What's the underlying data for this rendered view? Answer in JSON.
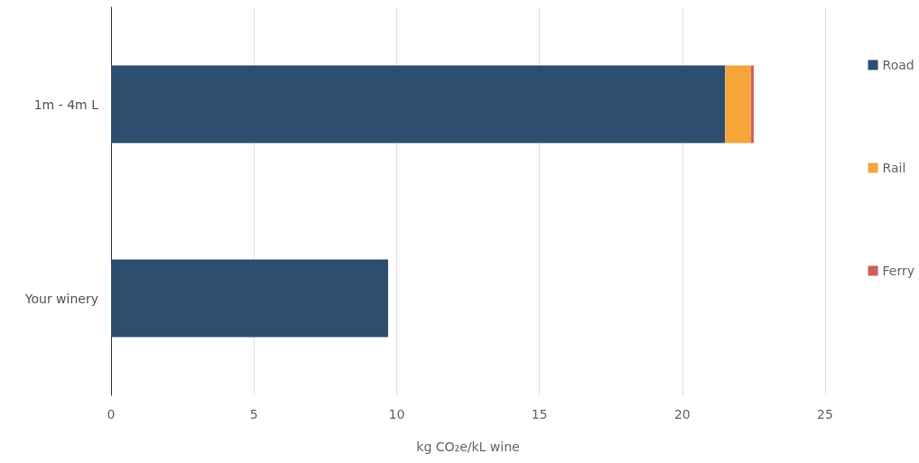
{
  "chart_data": {
    "type": "bar",
    "orientation": "horizontal",
    "stacked": true,
    "xlabel": "kg CO₂e/kL wine",
    "categories": [
      "1m - 4m L",
      "Your winery"
    ],
    "series": [
      {
        "name": "Road",
        "color": "#2d4e6f",
        "values": [
          21.5,
          9.7
        ]
      },
      {
        "name": "Rail",
        "color": "#f5a53a",
        "values": [
          0.9,
          null
        ]
      },
      {
        "name": "Ferry",
        "color": "#cd5f5a",
        "values": [
          0.1,
          null
        ]
      }
    ],
    "xlim": [
      0,
      25
    ],
    "xticks": [
      0,
      5,
      10,
      15,
      20,
      25
    ],
    "grid": "x",
    "legend": "right"
  }
}
